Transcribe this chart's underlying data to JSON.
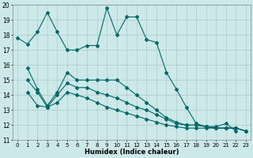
{
  "xlabel": "Humidex (Indice chaleur)",
  "xlim": [
    -0.5,
    23.5
  ],
  "ylim": [
    11,
    20
  ],
  "yticks": [
    11,
    12,
    13,
    14,
    15,
    16,
    17,
    18,
    19,
    20
  ],
  "xticks": [
    0,
    1,
    2,
    3,
    4,
    5,
    6,
    7,
    8,
    9,
    10,
    11,
    12,
    13,
    14,
    15,
    16,
    17,
    18,
    19,
    20,
    21,
    22,
    23
  ],
  "bg_color": "#cce8e8",
  "grid_color": "#aacccc",
  "line_color": "#006868",
  "series": [
    [
      17.8,
      17.4,
      18.2,
      19.5,
      18.2,
      17.0,
      17.0,
      17.3,
      17.3,
      19.8,
      18.0,
      19.2,
      19.2,
      17.7,
      17.5,
      15.5,
      14.4,
      13.2,
      12.1,
      11.9,
      11.9,
      12.1,
      11.6
    ],
    [
      15.8,
      14.4,
      13.3,
      14.2,
      15.5,
      15.0,
      15.0,
      15.0,
      15.0,
      15.0,
      14.5,
      14.0,
      13.5,
      13.0,
      12.5,
      12.2,
      12.0,
      12.0,
      11.9,
      11.8,
      11.8,
      11.8,
      11.6
    ],
    [
      15.0,
      14.2,
      13.2,
      14.0,
      14.8,
      14.5,
      14.5,
      14.2,
      14.0,
      13.8,
      13.5,
      13.2,
      13.0,
      12.7,
      12.4,
      12.1,
      12.0,
      12.0,
      11.9,
      11.8,
      11.8,
      11.8,
      11.6
    ],
    [
      14.2,
      13.3,
      13.2,
      13.5,
      14.2,
      14.0,
      13.8,
      13.5,
      13.2,
      13.0,
      12.8,
      12.6,
      12.4,
      12.2,
      12.0,
      11.9,
      11.8,
      11.8,
      11.8,
      11.8,
      11.8,
      11.8,
      11.6
    ]
  ]
}
